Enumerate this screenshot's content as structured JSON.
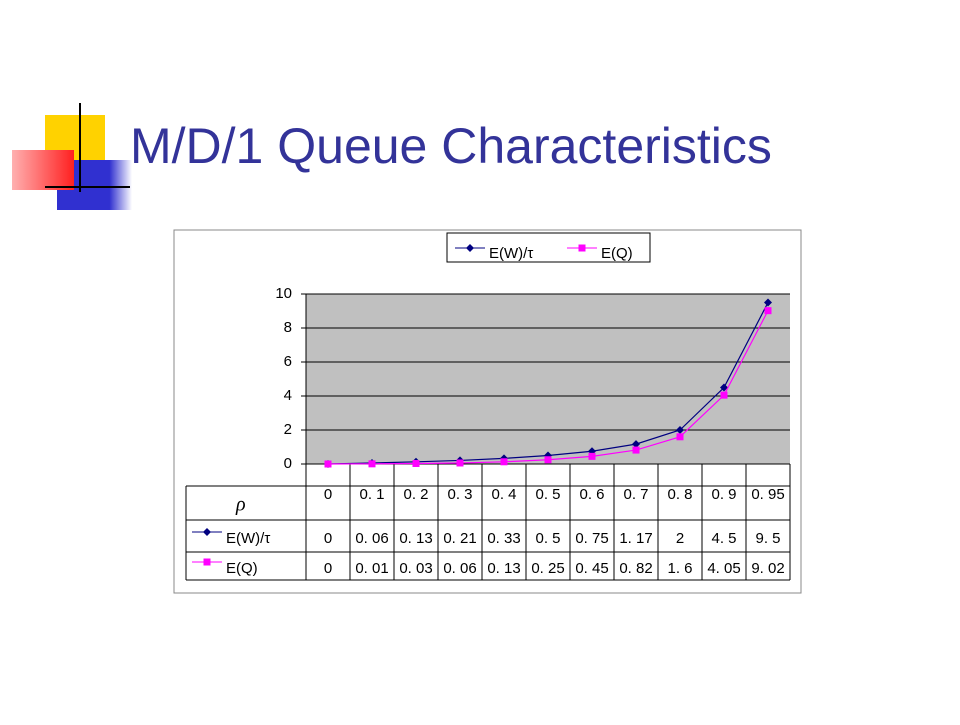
{
  "title": "M/D/1 Queue Characteristics",
  "chart_data": {
    "type": "line",
    "row_label": "ρ",
    "categories": [
      "0",
      "0. 1",
      "0. 2",
      "0. 3",
      "0. 4",
      "0. 5",
      "0. 6",
      "0. 7",
      "0. 8",
      "0. 9",
      "0. 95"
    ],
    "series": [
      {
        "name": "E(W)/τ",
        "color": "#000080",
        "marker": "diamond",
        "values": [
          0,
          0.06,
          0.13,
          0.21,
          0.33,
          0.5,
          0.75,
          1.17,
          2,
          4.5,
          9.5
        ],
        "value_labels": [
          "0",
          "0. 06",
          "0. 13",
          "0. 21",
          "0. 33",
          "0. 5",
          "0. 75",
          "1. 17",
          "2",
          "4. 5",
          "9. 5"
        ]
      },
      {
        "name": "E(Q)",
        "color": "#ff00ff",
        "marker": "square",
        "values": [
          0,
          0.01,
          0.03,
          0.06,
          0.13,
          0.25,
          0.45,
          0.82,
          1.6,
          4.05,
          9.02
        ],
        "value_labels": [
          "0",
          "0. 01",
          "0. 03",
          "0. 06",
          "0. 13",
          "0. 25",
          "0. 45",
          "0. 82",
          "1. 6",
          "4. 05",
          "9. 02"
        ]
      }
    ],
    "ylim": [
      0,
      10
    ],
    "yticks": [
      0,
      2,
      4,
      6,
      8,
      10
    ],
    "grid": true,
    "legend": "top"
  }
}
